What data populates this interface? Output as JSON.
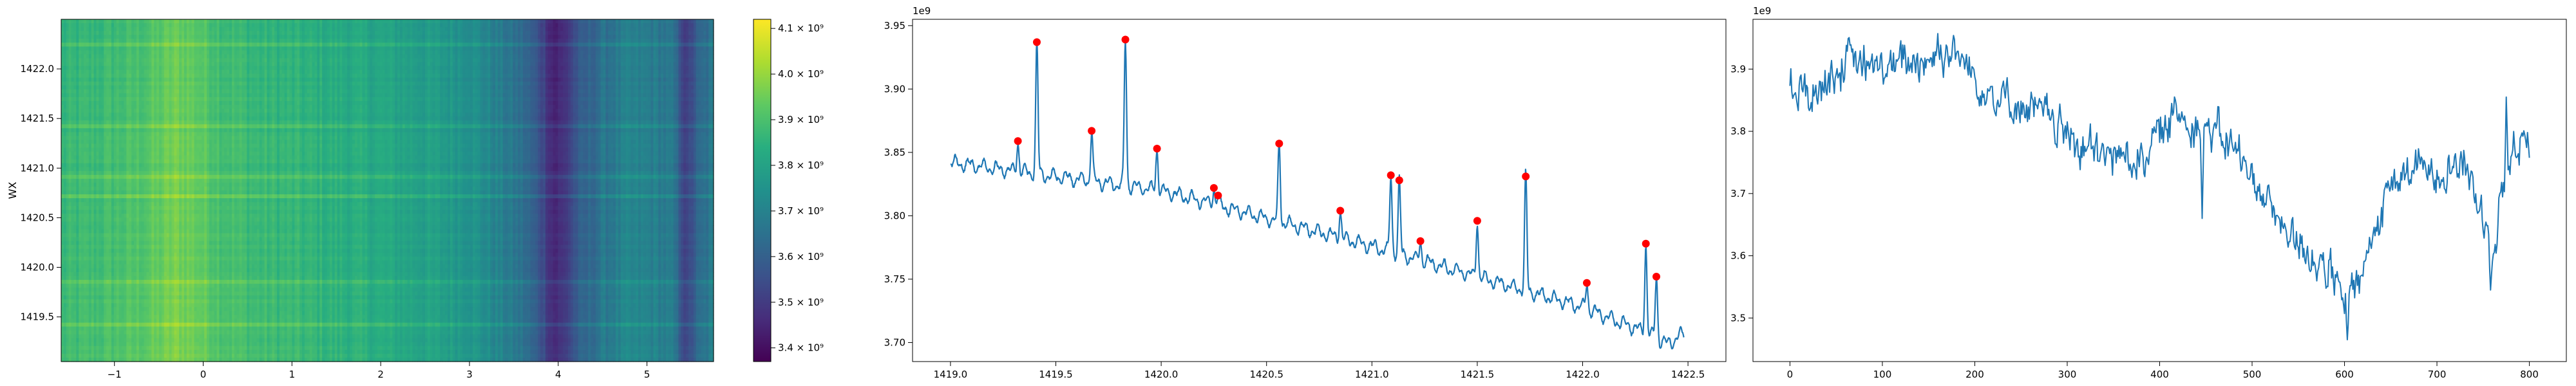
{
  "chart_data": [
    {
      "type": "heatmap",
      "title": "",
      "xlabel": "",
      "ylabel": "WX",
      "xlim": [
        -1.6,
        5.75
      ],
      "ylim": [
        1419.05,
        1422.5
      ],
      "xticks": [
        -1,
        0,
        1,
        2,
        3,
        4,
        5
      ],
      "xtick_labels": [
        "−1",
        "0",
        "1",
        "2",
        "3",
        "4",
        "5"
      ],
      "yticks": [
        1419.5,
        1420.0,
        1420.5,
        1421.0,
        1421.5,
        1422.0
      ],
      "ytick_labels": [
        "1419.5",
        "1420.0",
        "1420.5",
        "1421.0",
        "1421.5",
        "1422.0"
      ],
      "colormap": "viridis",
      "vmin": 3.37,
      "vmax": 4.12,
      "colorbar_ticks": [
        3.4,
        3.5,
        3.6,
        3.7,
        3.8,
        3.9,
        4.0,
        4.1
      ],
      "colorbar_tick_labels": [
        "3.4 × 10⁹",
        "3.5 × 10⁹",
        "3.6 × 10⁹",
        "3.7 × 10⁹",
        "3.8 × 10⁹",
        "3.9 × 10⁹",
        "4.0 × 10⁹",
        "4.1 × 10⁹"
      ],
      "column_profile_x": [
        -1.6,
        -1.2,
        -0.8,
        -0.5,
        -0.3,
        -0.1,
        0.2,
        0.6,
        1.0,
        1.5,
        2.0,
        2.5,
        3.0,
        3.3,
        3.6,
        3.8,
        3.95,
        4.05,
        4.2,
        4.5,
        4.8,
        5.1,
        5.3,
        5.45,
        5.55,
        5.75
      ],
      "column_profile_value": [
        3.86,
        3.88,
        3.9,
        3.93,
        3.96,
        3.94,
        3.9,
        3.87,
        3.86,
        3.84,
        3.82,
        3.79,
        3.76,
        3.7,
        3.64,
        3.56,
        3.45,
        3.47,
        3.57,
        3.66,
        3.7,
        3.69,
        3.66,
        3.5,
        3.6,
        3.68
      ]
    },
    {
      "type": "line",
      "title": "",
      "xlabel": "",
      "ylabel": "",
      "offset_label": "1e9",
      "xlim": [
        1418.82,
        1422.68
      ],
      "ylim": [
        3.685,
        3.955
      ],
      "xticks": [
        1419.0,
        1419.5,
        1420.0,
        1420.5,
        1421.0,
        1421.5,
        1422.0,
        1422.5
      ],
      "xtick_labels": [
        "1419.0",
        "1419.5",
        "1420.0",
        "1420.5",
        "1421.0",
        "1421.5",
        "1422.0",
        "1422.5"
      ],
      "yticks": [
        3.7,
        3.75,
        3.8,
        3.85,
        3.9,
        3.95
      ],
      "ytick_labels": [
        "3.70",
        "3.75",
        "3.80",
        "3.85",
        "3.90",
        "3.95"
      ],
      "x_range": [
        1419.0,
        1422.48
      ],
      "baseline": [
        [
          1419.0,
          3.842
        ],
        [
          1420.0,
          3.82
        ],
        [
          1421.0,
          3.776
        ],
        [
          1422.0,
          3.728
        ],
        [
          1422.3,
          3.708
        ],
        [
          1422.4,
          3.699
        ],
        [
          1422.48,
          3.707
        ]
      ],
      "peaks": {
        "x": [
          1419.32,
          1419.41,
          1419.67,
          1419.83,
          1419.98,
          1420.25,
          1420.27,
          1420.56,
          1420.85,
          1421.09,
          1421.13,
          1421.23,
          1421.5,
          1421.73,
          1422.02,
          1422.3,
          1422.35
        ],
        "y": [
          3.859,
          3.937,
          3.867,
          3.939,
          3.853,
          3.822,
          3.816,
          3.857,
          3.804,
          3.832,
          3.828,
          3.78,
          3.796,
          3.831,
          3.747,
          3.778,
          3.752
        ]
      },
      "line_color": "#1f77b4",
      "marker_color": "#ff0000"
    },
    {
      "type": "line",
      "title": "",
      "xlabel": "",
      "ylabel": "",
      "offset_label": "1e9",
      "xlim": [
        -40,
        840
      ],
      "ylim": [
        3.43,
        3.98
      ],
      "xticks": [
        0,
        100,
        200,
        300,
        400,
        500,
        600,
        700,
        800
      ],
      "xtick_labels": [
        "0",
        "100",
        "200",
        "300",
        "400",
        "500",
        "600",
        "700",
        "800"
      ],
      "yticks": [
        3.5,
        3.6,
        3.7,
        3.8,
        3.9
      ],
      "ytick_labels": [
        "3.5",
        "3.6",
        "3.7",
        "3.8",
        "3.9"
      ],
      "n_points": 801,
      "trend": {
        "x": [
          0,
          20,
          60,
          100,
          150,
          175,
          220,
          280,
          330,
          380,
          420,
          470,
          500,
          530,
          560,
          585,
          600,
          615,
          650,
          690,
          730,
          760,
          780,
          800
        ],
        "y": [
          3.87,
          3.86,
          3.91,
          3.9,
          3.92,
          3.93,
          3.86,
          3.82,
          3.76,
          3.76,
          3.83,
          3.79,
          3.73,
          3.65,
          3.61,
          3.57,
          3.52,
          3.55,
          3.72,
          3.74,
          3.75,
          3.62,
          3.77,
          3.79
        ]
      },
      "extremes": {
        "x": [
          160,
          446,
          603,
          758,
          775
        ],
        "y": [
          3.957,
          3.66,
          3.465,
          3.545,
          3.855
        ]
      },
      "line_color": "#1f77b4"
    }
  ]
}
